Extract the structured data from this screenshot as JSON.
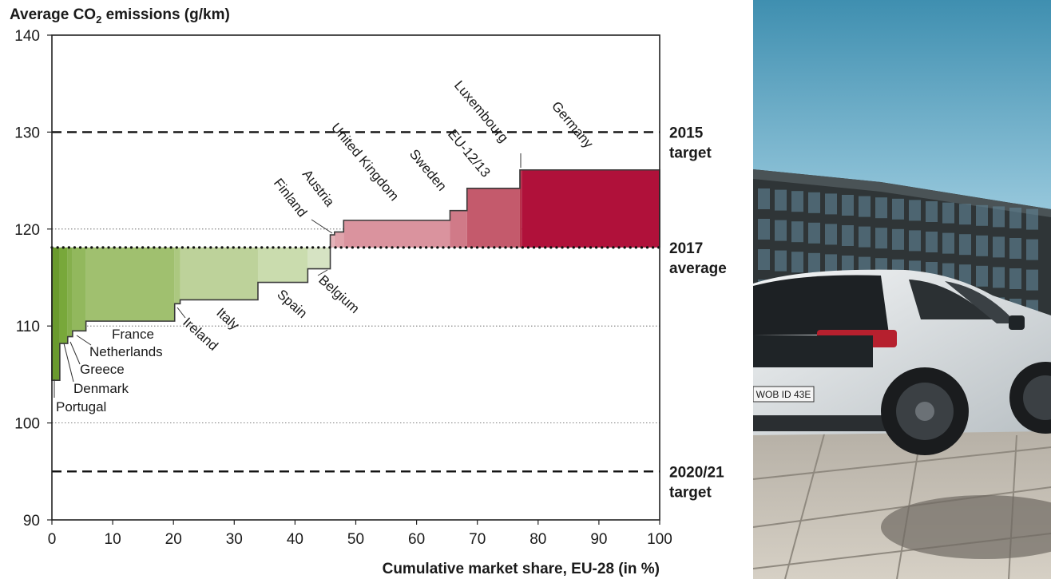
{
  "chart_data": {
    "type": "bar",
    "title": "Average CO₂ emissions (g/km)",
    "xlabel": "Cumulative market share, EU-28 (in %)",
    "ylabel": "Average CO₂ emissions (g/km)",
    "xlim": [
      0,
      100
    ],
    "ylim": [
      90,
      140
    ],
    "x_ticks": [
      "0",
      "10",
      "20",
      "30",
      "40",
      "50",
      "60",
      "70",
      "80",
      "90",
      "100"
    ],
    "y_ticks": [
      "90",
      "100",
      "110",
      "120",
      "130",
      "140"
    ],
    "baseline": 118.1,
    "countries": [
      {
        "name": "Portugal",
        "x_start": 0,
        "x_end": 1.3,
        "value": 104.4,
        "color": "#6a9a2e"
      },
      {
        "name": "Denmark",
        "x_start": 1.3,
        "x_end": 2.6,
        "value": 108.2,
        "color": "#78a83a"
      },
      {
        "name": "Greece",
        "x_start": 2.6,
        "x_end": 3.4,
        "value": 108.9,
        "color": "#86b04d"
      },
      {
        "name": "Netherlands",
        "x_start": 3.4,
        "x_end": 5.6,
        "value": 109.5,
        "color": "#92b85d"
      },
      {
        "name": "France",
        "x_start": 5.6,
        "x_end": 20.2,
        "value": 110.5,
        "color": "#a0c06f"
      },
      {
        "name": "Ireland",
        "x_start": 20.2,
        "x_end": 21.1,
        "value": 112.3,
        "color": "#acc880"
      },
      {
        "name": "Italy",
        "x_start": 21.1,
        "x_end": 33.9,
        "value": 112.7,
        "color": "#bdd29a"
      },
      {
        "name": "Spain",
        "x_start": 33.9,
        "x_end": 42.1,
        "value": 114.5,
        "color": "#cadcae"
      },
      {
        "name": "Belgium",
        "x_start": 42.1,
        "x_end": 45.8,
        "value": 115.9,
        "color": "#d6e3c3"
      },
      {
        "name": "Finland",
        "x_start": 45.8,
        "x_end": 46.5,
        "value": 119.4,
        "color": "#e4b3b9"
      },
      {
        "name": "Austria",
        "x_start": 46.5,
        "x_end": 48.0,
        "value": 119.7,
        "color": "#e0a4ac"
      },
      {
        "name": "United Kingdom",
        "x_start": 48.0,
        "x_end": 65.5,
        "value": 120.9,
        "color": "#da939e"
      },
      {
        "name": "Sweden",
        "x_start": 65.5,
        "x_end": 68.3,
        "value": 121.9,
        "color": "#d07a88"
      },
      {
        "name": "EU-12/13",
        "x_start": 68.3,
        "x_end": 77.0,
        "value": 124.2,
        "color": "#c45a6c"
      },
      {
        "name": "Luxembourg",
        "x_start": 77.0,
        "x_end": 77.3,
        "value": 126.1,
        "color": "#b7304a"
      },
      {
        "name": "Germany",
        "x_start": 77.3,
        "x_end": 100,
        "value": 126.1,
        "color": "#b0113a"
      }
    ],
    "reference_lines": [
      {
        "name": "2015 target",
        "label_line1": "2015",
        "label_line2": "target",
        "value": 130,
        "style": "dashed"
      },
      {
        "name": "2017 average",
        "label_line1": "2017",
        "label_line2": "average",
        "value": 118.1,
        "style": "dotted"
      },
      {
        "name": "2020/21 target",
        "label_line1": "2020/21",
        "label_line2": "target",
        "value": 95,
        "style": "dashed"
      }
    ],
    "grid": {
      "horizontal": true,
      "style": "dotted",
      "values": [
        100,
        110,
        120
      ]
    },
    "legend": "none"
  },
  "photo": {
    "plate_text": "WOB ID 43E"
  }
}
